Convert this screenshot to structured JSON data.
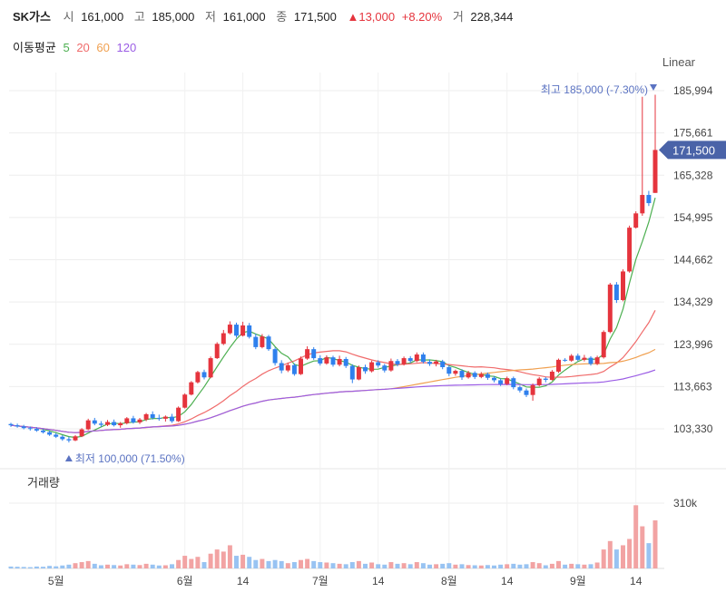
{
  "header": {
    "name": "SK가스",
    "open_label": "시",
    "open": "161,000",
    "high_label": "고",
    "high": "185,000",
    "low_label": "저",
    "low": "161,000",
    "close_label": "종",
    "close": "171,500",
    "change": "▲13,000",
    "change_pct": "+8.20%",
    "volume_label": "거",
    "volume": "228,344"
  },
  "ma_legend": {
    "title": "이동평균",
    "items": [
      {
        "label": "5",
        "color": "#4caf50"
      },
      {
        "label": "20",
        "color": "#f06b6b"
      },
      {
        "label": "60",
        "color": "#f0a050"
      },
      {
        "label": "120",
        "color": "#9b5de5"
      }
    ]
  },
  "scale_label": "Linear",
  "colors": {
    "up": "#e5343d",
    "down": "#2f80ed",
    "current_tag": "#4a63a8",
    "annotation": "#5b73c2"
  },
  "chart_data": {
    "type": "candlestick",
    "y_ticks": [
      "185,994",
      "175,661",
      "165,328",
      "154,995",
      "144,662",
      "134,329",
      "123,996",
      "113,663",
      "103,330"
    ],
    "y_tick_values": [
      185994,
      175661,
      165328,
      154995,
      144662,
      134329,
      123996,
      113663,
      103330
    ],
    "x_ticks": [
      {
        "label": "5월",
        "index": 7
      },
      {
        "label": "6월",
        "index": 27
      },
      {
        "label": "14",
        "index": 36
      },
      {
        "label": "7월",
        "index": 48
      },
      {
        "label": "14",
        "index": 57
      },
      {
        "label": "8월",
        "index": 68
      },
      {
        "label": "14",
        "index": 77
      },
      {
        "label": "9월",
        "index": 88
      },
      {
        "label": "14",
        "index": 97
      }
    ],
    "current_price": {
      "value": 171500,
      "label": "171,500"
    },
    "high_annotation": {
      "text": "최고 185,000 (-7.30%)",
      "value": 185000
    },
    "low_annotation": {
      "text": "최저 100,000 (71.50%)",
      "value": 100000
    },
    "volume_panel": {
      "title": "거래량",
      "tick_label": "310k",
      "tick_value": 310000
    },
    "candles": [
      [
        104500,
        104800,
        103800,
        104200,
        9000
      ],
      [
        104200,
        104600,
        103600,
        103900,
        8000
      ],
      [
        103900,
        104300,
        103200,
        103500,
        7000
      ],
      [
        103500,
        103900,
        102900,
        103300,
        6000
      ],
      [
        103300,
        103700,
        102600,
        102900,
        9000
      ],
      [
        102900,
        103300,
        102200,
        102500,
        8000
      ],
      [
        102500,
        102900,
        101600,
        101900,
        12000
      ],
      [
        101900,
        102300,
        101100,
        101400,
        10000
      ],
      [
        101400,
        101800,
        100400,
        100800,
        14000
      ],
      [
        100800,
        101400,
        100000,
        100500,
        18000
      ],
      [
        100500,
        101800,
        100300,
        101500,
        25000
      ],
      [
        101500,
        103500,
        101300,
        103200,
        30000
      ],
      [
        103200,
        105800,
        103000,
        105400,
        35000
      ],
      [
        105400,
        106000,
        104200,
        104600,
        22000
      ],
      [
        104600,
        105200,
        103800,
        104300,
        15000
      ],
      [
        104300,
        105500,
        104000,
        105000,
        18000
      ],
      [
        105000,
        105600,
        103900,
        104200,
        16000
      ],
      [
        104200,
        105000,
        103600,
        104700,
        14000
      ],
      [
        104700,
        106200,
        104400,
        105900,
        20000
      ],
      [
        105900,
        106500,
        104600,
        104900,
        18000
      ],
      [
        104900,
        106000,
        104500,
        105600,
        16000
      ],
      [
        105600,
        107200,
        105200,
        106900,
        22000
      ],
      [
        106900,
        107600,
        105600,
        106000,
        18000
      ],
      [
        106000,
        106800,
        105300,
        105800,
        14000
      ],
      [
        105800,
        106600,
        105100,
        106300,
        15000
      ],
      [
        106300,
        107000,
        104800,
        105200,
        20000
      ],
      [
        105200,
        108800,
        105000,
        108500,
        40000
      ],
      [
        108500,
        112000,
        108300,
        111700,
        60000
      ],
      [
        111700,
        115000,
        111500,
        114700,
        45000
      ],
      [
        114700,
        117500,
        114400,
        117200,
        55000
      ],
      [
        117200,
        117800,
        115400,
        115900,
        30000
      ],
      [
        115900,
        121000,
        115700,
        120600,
        70000
      ],
      [
        120600,
        124500,
        120400,
        124100,
        90000
      ],
      [
        124100,
        127500,
        123800,
        126700,
        80000
      ],
      [
        126700,
        129600,
        126400,
        128800,
        110000
      ],
      [
        128800,
        129300,
        125600,
        126100,
        60000
      ],
      [
        126100,
        129500,
        125900,
        128600,
        65000
      ],
      [
        128600,
        129200,
        125400,
        125800,
        55000
      ],
      [
        125800,
        126600,
        122800,
        123300,
        40000
      ],
      [
        123300,
        126500,
        123000,
        125900,
        45000
      ],
      [
        125900,
        126300,
        122400,
        122800,
        35000
      ],
      [
        122800,
        123200,
        118800,
        119400,
        40000
      ],
      [
        119400,
        120100,
        116900,
        117600,
        35000
      ],
      [
        117600,
        119500,
        117200,
        118900,
        25000
      ],
      [
        118900,
        119300,
        116300,
        116700,
        30000
      ],
      [
        116700,
        121000,
        116500,
        120500,
        40000
      ],
      [
        120500,
        123500,
        120200,
        122800,
        45000
      ],
      [
        122800,
        123300,
        120200,
        120600,
        35000
      ],
      [
        120600,
        121300,
        118800,
        119300,
        30000
      ],
      [
        119300,
        121300,
        119000,
        120800,
        28000
      ],
      [
        120800,
        121200,
        118500,
        119000,
        25000
      ],
      [
        119000,
        121200,
        118600,
        120400,
        22000
      ],
      [
        120400,
        120900,
        118200,
        118700,
        20000
      ],
      [
        118700,
        119100,
        114500,
        115400,
        30000
      ],
      [
        115400,
        118800,
        115200,
        118400,
        35000
      ],
      [
        118400,
        119000,
        116800,
        117400,
        22000
      ],
      [
        117400,
        120000,
        117100,
        119600,
        28000
      ],
      [
        119600,
        120100,
        118300,
        118800,
        20000
      ],
      [
        118800,
        119200,
        117100,
        117600,
        18000
      ],
      [
        117600,
        120500,
        117300,
        119900,
        30000
      ],
      [
        119900,
        120400,
        118600,
        119100,
        22000
      ],
      [
        119100,
        121000,
        118800,
        120600,
        25000
      ],
      [
        120600,
        121100,
        119400,
        119900,
        20000
      ],
      [
        119900,
        122000,
        119600,
        121500,
        30000
      ],
      [
        121500,
        122000,
        119300,
        119700,
        25000
      ],
      [
        119700,
        120300,
        118700,
        119200,
        18000
      ],
      [
        119200,
        120200,
        118600,
        119800,
        20000
      ],
      [
        119800,
        120200,
        117900,
        118400,
        22000
      ],
      [
        118400,
        118800,
        116200,
        116800,
        25000
      ],
      [
        116800,
        117800,
        116300,
        117500,
        18000
      ],
      [
        117500,
        117900,
        115300,
        115900,
        20000
      ],
      [
        115900,
        117500,
        115600,
        117000,
        16000
      ],
      [
        117000,
        117400,
        115500,
        116000,
        15000
      ],
      [
        116000,
        117200,
        115700,
        116700,
        14000
      ],
      [
        116700,
        117100,
        115300,
        115800,
        16000
      ],
      [
        115800,
        116200,
        114700,
        115200,
        14000
      ],
      [
        115200,
        115600,
        113800,
        114300,
        18000
      ],
      [
        114300,
        116100,
        114000,
        115700,
        20000
      ],
      [
        115700,
        116100,
        113000,
        113500,
        22000
      ],
      [
        113500,
        113900,
        112200,
        112700,
        18000
      ],
      [
        112700,
        113200,
        111100,
        111600,
        20000
      ],
      [
        111600,
        114400,
        110200,
        114000,
        30000
      ],
      [
        114000,
        116000,
        113700,
        115600,
        25000
      ],
      [
        115600,
        116000,
        114700,
        115300,
        15000
      ],
      [
        115300,
        117700,
        115100,
        117300,
        22000
      ],
      [
        117300,
        120500,
        117000,
        120200,
        35000
      ],
      [
        120200,
        120600,
        119700,
        120000,
        18000
      ],
      [
        120000,
        121600,
        119700,
        121200,
        22000
      ],
      [
        121200,
        121700,
        119900,
        120200,
        20000
      ],
      [
        120200,
        121400,
        119800,
        120700,
        18000
      ],
      [
        120700,
        121100,
        118800,
        119200,
        20000
      ],
      [
        119200,
        121200,
        118900,
        120800,
        28000
      ],
      [
        120800,
        127400,
        120500,
        127000,
        90000
      ],
      [
        127000,
        139000,
        126700,
        138600,
        130000
      ],
      [
        138600,
        139200,
        134100,
        134800,
        90000
      ],
      [
        134800,
        142300,
        134500,
        141800,
        110000
      ],
      [
        141800,
        153000,
        141500,
        152500,
        140000
      ],
      [
        152500,
        156500,
        152300,
        156000,
        300000
      ],
      [
        156000,
        184500,
        155400,
        160500,
        200000
      ],
      [
        160500,
        161500,
        157800,
        158500,
        120000
      ],
      [
        161000,
        185000,
        161000,
        171500,
        228344
      ]
    ]
  }
}
